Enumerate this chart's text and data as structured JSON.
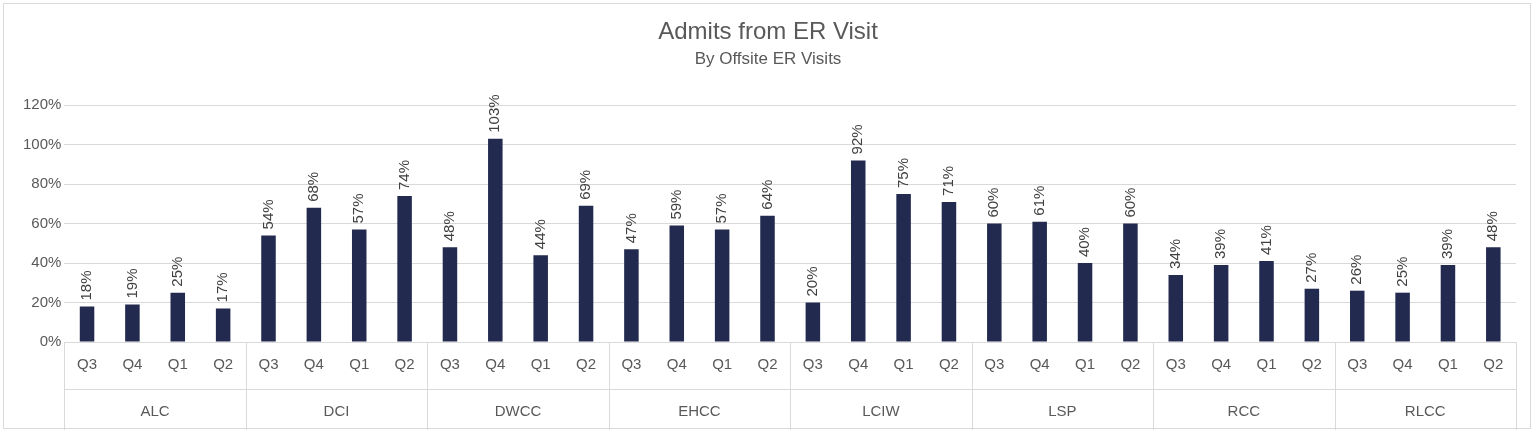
{
  "chart_data": {
    "type": "bar",
    "title": "Admits from ER Visit",
    "subtitle": "By Offsite ER Visits",
    "categories": [
      "Q3",
      "Q4",
      "Q1",
      "Q2",
      "Q3",
      "Q4",
      "Q1",
      "Q2",
      "Q3",
      "Q4",
      "Q1",
      "Q2",
      "Q3",
      "Q4",
      "Q1",
      "Q2",
      "Q3",
      "Q4",
      "Q1",
      "Q2",
      "Q3",
      "Q4",
      "Q1",
      "Q2",
      "Q3",
      "Q4",
      "Q1",
      "Q2",
      "Q3",
      "Q4",
      "Q1",
      "Q2"
    ],
    "values": [
      18,
      19,
      25,
      17,
      54,
      68,
      57,
      74,
      48,
      103,
      44,
      69,
      47,
      59,
      57,
      64,
      20,
      92,
      75,
      71,
      60,
      61,
      40,
      60,
      34,
      39,
      41,
      27,
      26,
      25,
      39,
      48
    ],
    "value_labels": [
      "18%",
      "19%",
      "25%",
      "17%",
      "54%",
      "68%",
      "57%",
      "74%",
      "48%",
      "103%",
      "44%",
      "69%",
      "47%",
      "59%",
      "57%",
      "64%",
      "20%",
      "92%",
      "75%",
      "71%",
      "60%",
      "61%",
      "40%",
      "60%",
      "34%",
      "39%",
      "41%",
      "27%",
      "26%",
      "25%",
      "39%",
      "48%"
    ],
    "color": "#222a4f",
    "ylim": [
      0,
      120
    ],
    "yticks": [
      {
        "value": 0,
        "label": "0%"
      },
      {
        "value": 20,
        "label": "20%"
      },
      {
        "value": 40,
        "label": "40%"
      },
      {
        "value": 60,
        "label": "60%"
      },
      {
        "value": 80,
        "label": "80%"
      },
      {
        "value": 100,
        "label": "100%"
      },
      {
        "value": 120,
        "label": "120%"
      }
    ],
    "grid": "y",
    "annotations": [
      "ALC",
      "DCI",
      "DWCC",
      "EHCC",
      "LCIW",
      "LSP",
      "RCC",
      "RLCC"
    ]
  }
}
